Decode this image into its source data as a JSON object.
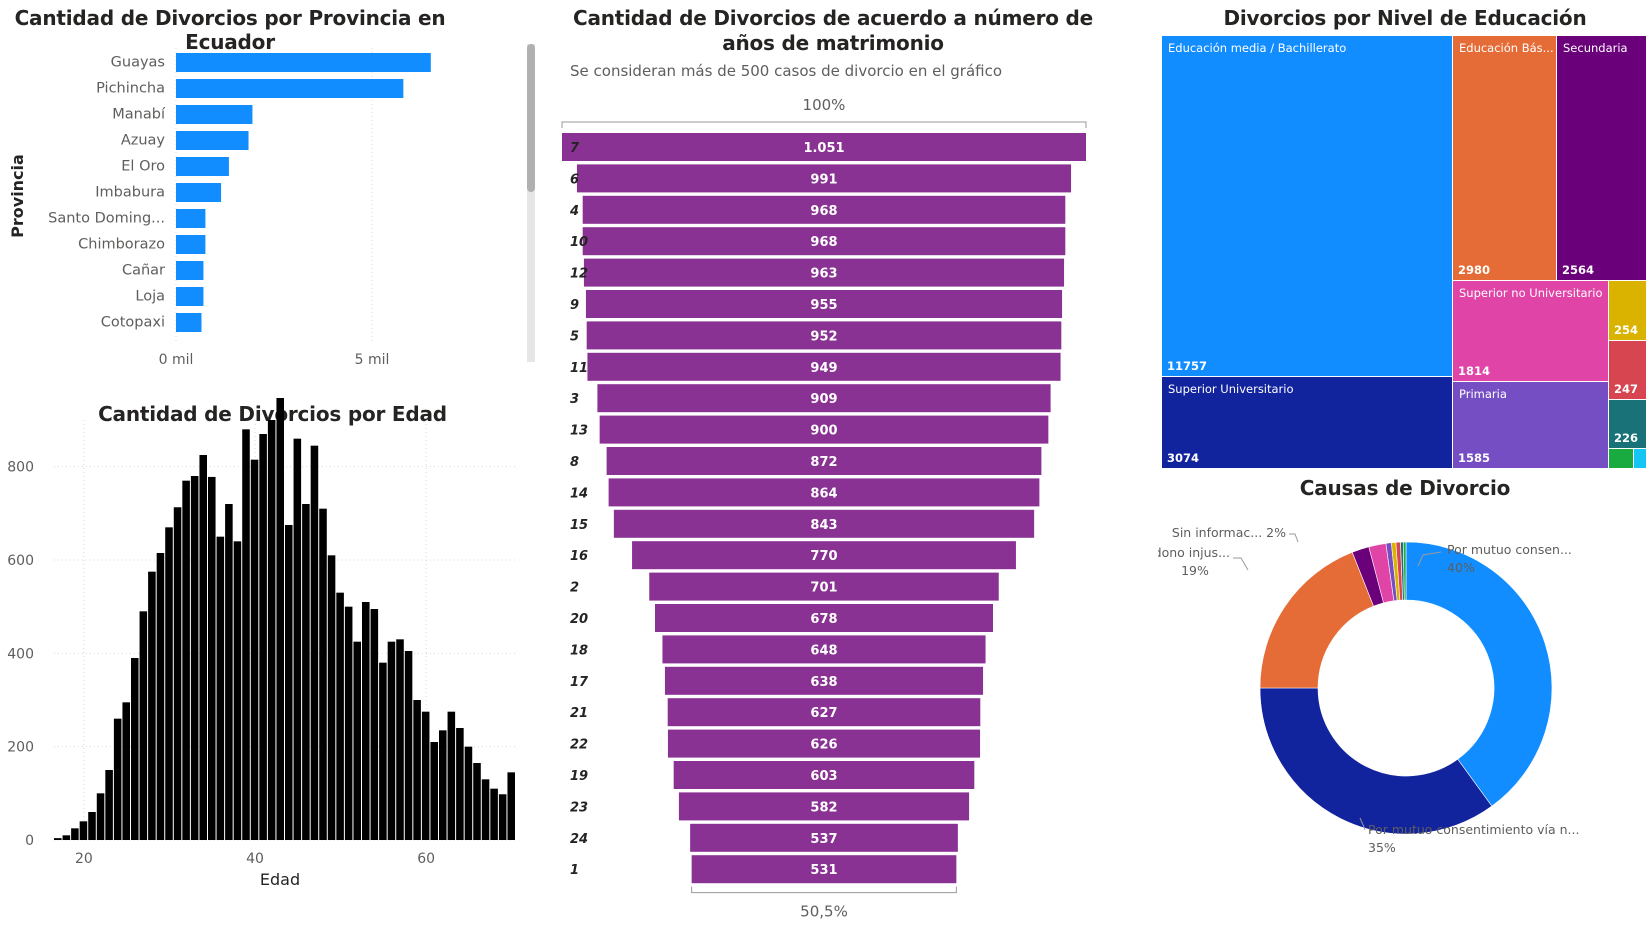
{
  "provinces": {
    "title": "Cantidad de Divorcios por Provincia en Ecuador",
    "ylabel": "Provincia",
    "x_ticks": [
      "0 mil",
      "5 mil"
    ],
    "colors": {
      "bar": "#118dff"
    }
  },
  "age": {
    "title": "Cantidad de Divorcios por Edad",
    "xlabel": "Edad",
    "y_ticks": [
      "0",
      "200",
      "400",
      "600",
      "800"
    ],
    "x_ticks": [
      "20",
      "40",
      "60"
    ],
    "colors": {
      "bar": "#000000"
    }
  },
  "funnel": {
    "title": "Cantidad de Divorcios de acuerdo a número de años de matrimonio",
    "subtitle": "Se consideran más de 500 casos de divorcio en el gráfico",
    "top_pct": "100%",
    "bottom_pct": "50,5%",
    "colors": {
      "bar": "#8a3293"
    }
  },
  "education": {
    "title": "Divorcios por Nivel de Educación"
  },
  "causes": {
    "title": "Causas de Divorcio"
  },
  "chart_data": [
    {
      "type": "bar",
      "orientation": "horizontal",
      "title": "Cantidad de Divorcios por Provincia en Ecuador",
      "ylabel": "Provincia",
      "xlabel": "",
      "categories": [
        "Guayas",
        "Pichincha",
        "Manabí",
        "Azuay",
        "El Oro",
        "Imbabura",
        "Santo Doming...",
        "Chimborazo",
        "Cañar",
        "Loja",
        "Cotopaxi"
      ],
      "values": [
        6500,
        5800,
        1950,
        1850,
        1350,
        1150,
        750,
        750,
        700,
        700,
        650
      ],
      "x_tick_values": [
        0,
        5000
      ],
      "xlim": [
        0,
        8000
      ]
    },
    {
      "type": "bar",
      "title": "Cantidad de Divorcios por Edad",
      "xlabel": "Edad",
      "ylabel": "",
      "x": [
        17,
        18,
        19,
        20,
        21,
        22,
        23,
        24,
        25,
        26,
        27,
        28,
        29,
        30,
        31,
        32,
        33,
        34,
        35,
        36,
        37,
        38,
        39,
        40,
        41,
        42,
        43,
        44,
        45,
        46,
        47,
        48,
        49,
        50,
        51,
        52,
        53,
        54,
        55,
        56,
        57,
        58,
        59,
        60,
        61,
        62,
        63,
        64,
        65,
        66,
        67,
        68,
        69,
        70
      ],
      "values": [
        4,
        10,
        25,
        40,
        60,
        100,
        150,
        260,
        295,
        390,
        490,
        575,
        615,
        670,
        713,
        770,
        780,
        825,
        778,
        650,
        720,
        640,
        880,
        815,
        870,
        900,
        970,
        675,
        860,
        720,
        845,
        710,
        610,
        530,
        500,
        425,
        510,
        495,
        380,
        425,
        430,
        405,
        300,
        275,
        210,
        235,
        275,
        240,
        200,
        165,
        130,
        110,
        98,
        145
      ],
      "xlim": [
        17,
        70
      ],
      "ylim": [
        0,
        900
      ],
      "y_tick_values": [
        0,
        200,
        400,
        600,
        800
      ],
      "x_tick_values": [
        20,
        40,
        60
      ],
      "grid": true
    },
    {
      "type": "bar",
      "subtype": "funnel",
      "title": "Cantidad de Divorcios de acuerdo a número de años de matrimonio",
      "subtitle": "Se consideran más de 500 casos de divorcio en el gráfico",
      "categories": [
        "7",
        "6",
        "4",
        "10",
        "12",
        "9",
        "5",
        "11",
        "3",
        "13",
        "8",
        "14",
        "15",
        "16",
        "2",
        "20",
        "18",
        "17",
        "21",
        "22",
        "19",
        "23",
        "24",
        "1"
      ],
      "values": [
        1051,
        991,
        968,
        968,
        963,
        955,
        952,
        949,
        909,
        900,
        872,
        864,
        843,
        770,
        701,
        678,
        648,
        638,
        627,
        626,
        603,
        582,
        537,
        531
      ],
      "value_labels": [
        "1.051",
        "991",
        "968",
        "968",
        "963",
        "955",
        "952",
        "949",
        "909",
        "900",
        "872",
        "864",
        "843",
        "770",
        "701",
        "678",
        "648",
        "638",
        "627",
        "626",
        "603",
        "582",
        "537",
        "531"
      ]
    },
    {
      "type": "treemap",
      "title": "Divorcios por Nivel de Educación",
      "items": [
        {
          "name": "Educación media / Bachillerato",
          "value": 11757,
          "color": "#118dff",
          "label": "Educación media / Bachillerato",
          "value_label": "11757"
        },
        {
          "name": "Superior Universitario",
          "value": 3074,
          "color": "#12239e",
          "label": "Superior Universitario",
          "value_label": "3074"
        },
        {
          "name": "Educación Básica",
          "value": 2980,
          "color": "#e66c37",
          "label": "Educación Bás...",
          "value_label": "2980"
        },
        {
          "name": "Secundaria",
          "value": 2564,
          "color": "#6b007b",
          "label": "Secundaria",
          "value_label": "2564"
        },
        {
          "name": "Superior no Universitario",
          "value": 1814,
          "color": "#e044a7",
          "label": "Superior no Universitario",
          "value_label": "1814"
        },
        {
          "name": "Primaria",
          "value": 1585,
          "color": "#744ec2",
          "label": "Primaria",
          "value_label": "1585"
        },
        {
          "name": "",
          "value": 254,
          "color": "#d9b300",
          "label": "",
          "value_label": "254"
        },
        {
          "name": "",
          "value": 247,
          "color": "#d64550",
          "label": "",
          "value_label": "247"
        },
        {
          "name": "",
          "value": 226,
          "color": "#197278",
          "label": "",
          "value_label": "226"
        },
        {
          "name": "",
          "value": 120,
          "color": "#1aab40",
          "label": "",
          "value_label": ""
        },
        {
          "name": "",
          "value": 60,
          "color": "#15c6f4",
          "label": "",
          "value_label": ""
        }
      ]
    },
    {
      "type": "pie",
      "subtype": "donut",
      "title": "Causas de Divorcio",
      "slices": [
        {
          "label": "Por mutuo consen...",
          "value": 40,
          "color": "#118dff",
          "pct_label": "40%"
        },
        {
          "label": "Por mutuo consentimiento vía n...",
          "value": 35,
          "color": "#12239e",
          "pct_label": "35%"
        },
        {
          "label": "El abandono injus...",
          "value": 19,
          "color": "#e66c37",
          "pct_label": "19%"
        },
        {
          "label": "",
          "value": 1.9,
          "color": "#6b007b",
          "pct_label": ""
        },
        {
          "label": "Sin informac...",
          "value": 1.9,
          "color": "#e044a7",
          "pct_label": "2%"
        },
        {
          "label": "",
          "value": 0.6,
          "color": "#744ec2",
          "pct_label": ""
        },
        {
          "label": "",
          "value": 0.5,
          "color": "#d9b300",
          "pct_label": ""
        },
        {
          "label": "",
          "value": 0.5,
          "color": "#d64550",
          "pct_label": ""
        },
        {
          "label": "",
          "value": 0.3,
          "color": "#197278",
          "pct_label": ""
        },
        {
          "label": "",
          "value": 0.3,
          "color": "#1aab40",
          "pct_label": ""
        }
      ]
    }
  ]
}
